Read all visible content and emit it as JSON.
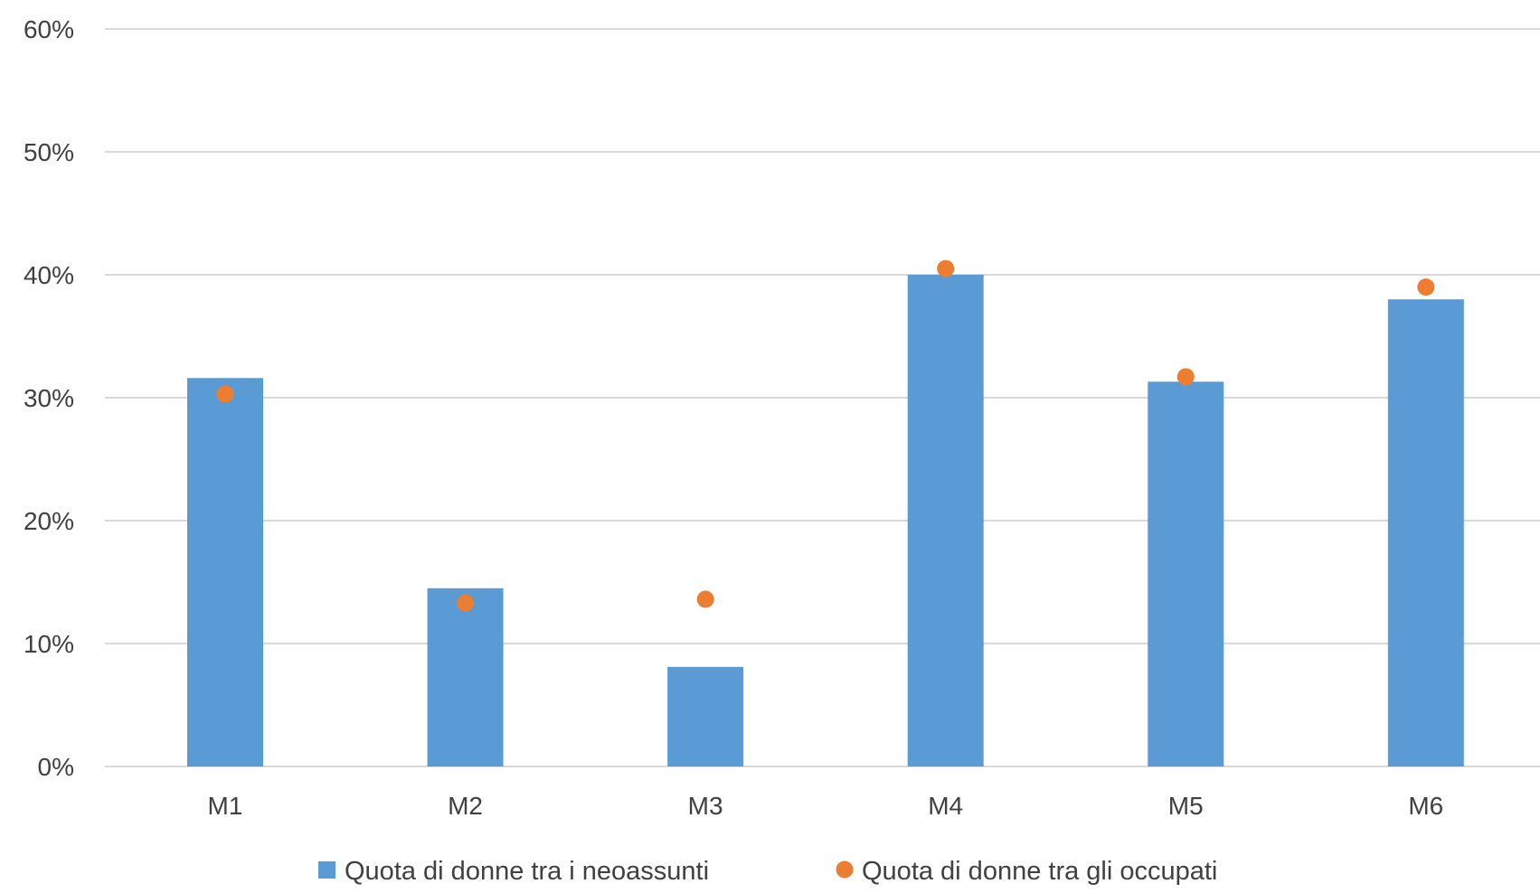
{
  "chart_data": {
    "type": "bar",
    "categories": [
      "M1",
      "M2",
      "M3",
      "M4",
      "M5",
      "M6"
    ],
    "series": [
      {
        "name": "Quota di donne tra i neoassunti",
        "kind": "bar",
        "color": "#5b9bd5",
        "values": [
          31.6,
          14.5,
          8.1,
          40.0,
          31.3,
          38.0
        ]
      },
      {
        "name": "Quota di donne tra gli occupati",
        "kind": "marker",
        "color": "#ed7d31",
        "values": [
          30.3,
          13.3,
          13.6,
          40.5,
          31.7,
          39.0
        ]
      }
    ],
    "ylim": [
      0,
      60
    ],
    "yticks": [
      0,
      10,
      20,
      30,
      40,
      50,
      60
    ],
    "ytick_labels": [
      "0%",
      "10%",
      "20%",
      "30%",
      "40%",
      "50%",
      "60%"
    ],
    "grid": true,
    "legend_position": "bottom"
  }
}
